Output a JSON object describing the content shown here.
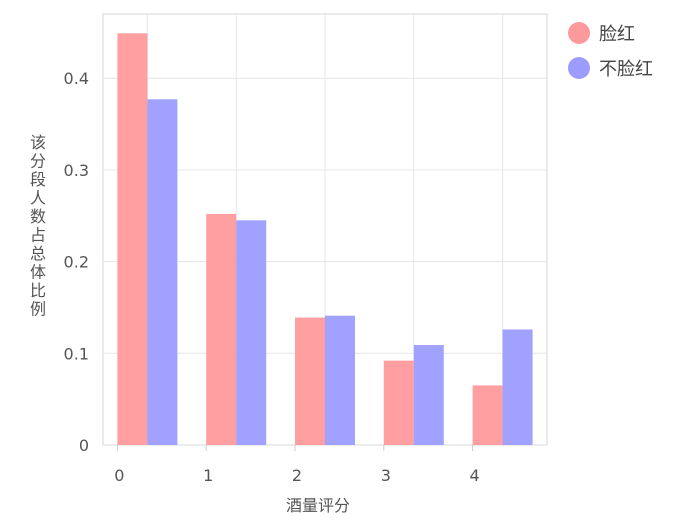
{
  "chart_data": {
    "type": "bar",
    "title": "",
    "xlabel": "酒量评分",
    "ylabel": "该分段人数占总体比例",
    "categories": [
      "0",
      "1",
      "2",
      "3",
      "4"
    ],
    "series": [
      {
        "name": "脸红",
        "color": "#ff9a9c",
        "values": [
          0.449,
          0.252,
          0.139,
          0.092,
          0.065
        ]
      },
      {
        "name": "不脸红",
        "color": "#9c9cff",
        "values": [
          0.377,
          0.245,
          0.141,
          0.109,
          0.126
        ]
      }
    ],
    "yticks": [
      "0",
      "0.1",
      "0.2",
      "0.3",
      "0.4"
    ],
    "ylim": [
      0,
      0.47
    ],
    "grid": true,
    "legend_position": "top-right"
  }
}
